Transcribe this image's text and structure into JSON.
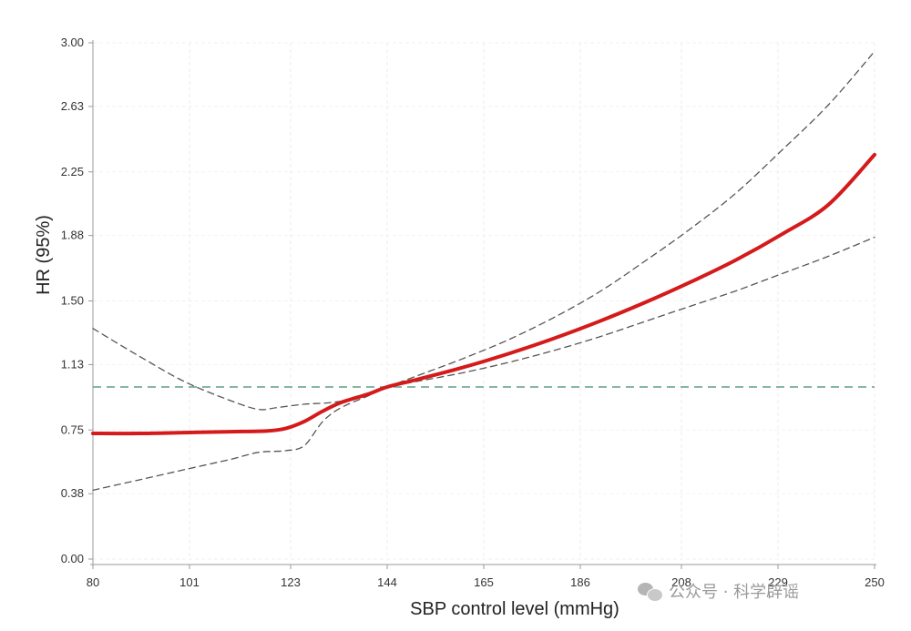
{
  "chart_data": {
    "type": "line",
    "title": "",
    "xlabel": "SBP control level (mmHg)",
    "ylabel": "HR (95%)",
    "xlim": [
      80,
      250
    ],
    "ylim": [
      0,
      3.0
    ],
    "x_ticks": [
      80,
      101,
      123,
      144,
      165,
      186,
      208,
      229,
      250
    ],
    "y_ticks": [
      0.0,
      0.38,
      0.75,
      1.13,
      1.5,
      1.88,
      2.25,
      2.63,
      3.0
    ],
    "y_tick_labels": [
      "0.00",
      "0.38",
      "0.75",
      "1.13",
      "1.50",
      "1.88",
      "2.25",
      "2.63",
      "3.00"
    ],
    "grid": true,
    "reference_line": {
      "y": 1.0,
      "style": "dashed",
      "color": "#5f9e86"
    },
    "series": [
      {
        "role": "estimate",
        "color": "#d41a1a",
        "style": "solid",
        "x": [
          80,
          90,
          100,
          110,
          118,
          122,
          126,
          130,
          134,
          140,
          144,
          150,
          160,
          170,
          180,
          190,
          200,
          210,
          220,
          230,
          240,
          250
        ],
        "y": [
          0.73,
          0.73,
          0.735,
          0.74,
          0.745,
          0.76,
          0.8,
          0.86,
          0.91,
          0.96,
          1.0,
          1.04,
          1.11,
          1.19,
          1.28,
          1.38,
          1.49,
          1.61,
          1.74,
          1.89,
          2.06,
          2.35
        ]
      },
      {
        "role": "upper 95% CI",
        "color": "#555555",
        "style": "dashed",
        "x": [
          80,
          90,
          100,
          110,
          116,
          120,
          126,
          132,
          138,
          144,
          150,
          160,
          170,
          180,
          190,
          200,
          210,
          220,
          230,
          240,
          250
        ],
        "y": [
          1.34,
          1.18,
          1.03,
          0.92,
          0.87,
          0.88,
          0.9,
          0.91,
          0.94,
          1.0,
          1.06,
          1.16,
          1.27,
          1.4,
          1.55,
          1.73,
          1.92,
          2.13,
          2.38,
          2.64,
          2.95
        ]
      },
      {
        "role": "lower 95% CI",
        "color": "#555555",
        "style": "dashed",
        "x": [
          80,
          90,
          100,
          110,
          116,
          122,
          126,
          130,
          134,
          140,
          144,
          150,
          160,
          170,
          180,
          190,
          200,
          210,
          220,
          230,
          240,
          250
        ],
        "y": [
          0.4,
          0.46,
          0.52,
          0.58,
          0.62,
          0.63,
          0.66,
          0.8,
          0.88,
          0.95,
          1.0,
          1.03,
          1.08,
          1.14,
          1.21,
          1.29,
          1.38,
          1.47,
          1.56,
          1.66,
          1.76,
          1.87
        ]
      }
    ]
  },
  "watermark": {
    "text": "公众号 · 科学辟谣",
    "icon": "wechat-icon"
  }
}
